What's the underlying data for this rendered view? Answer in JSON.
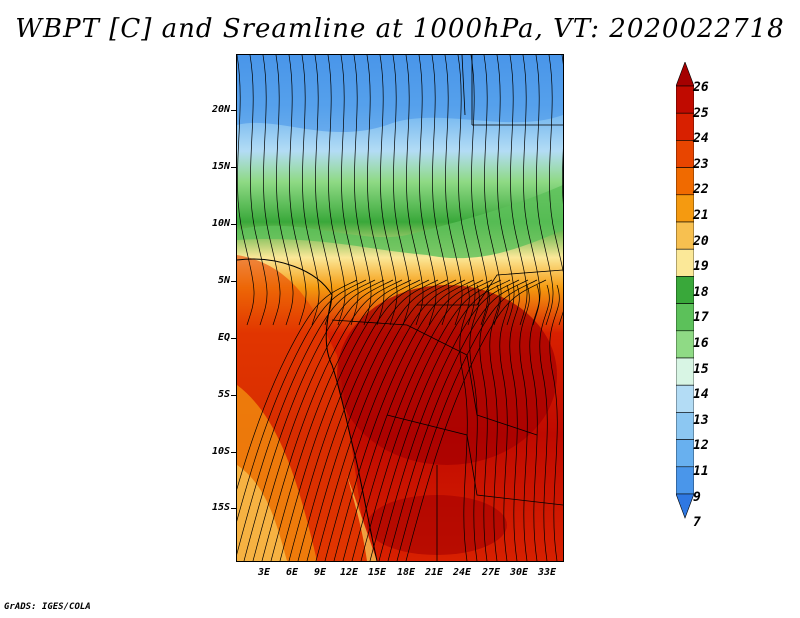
{
  "title": "WBPT [C] and Sreamline at 1000hPa, VT: 2020022718",
  "footer": "GrADS: IGES/COLA",
  "lat_labels": [
    "20N",
    "15N",
    "10N",
    "5N",
    "EQ",
    "5S",
    "10S",
    "15S"
  ],
  "lon_labels": [
    "3E",
    "6E",
    "9E",
    "12E",
    "15E",
    "18E",
    "21E",
    "24E",
    "27E",
    "30E",
    "33E"
  ],
  "colorbar": {
    "labels": [
      "26",
      "25",
      "24",
      "23",
      "22",
      "21",
      "20",
      "19",
      "18",
      "17",
      "16",
      "15",
      "14",
      "13",
      "12",
      "11",
      "9",
      "7"
    ],
    "colors": [
      "#a50000",
      "#c00a00",
      "#d82000",
      "#e84500",
      "#f06a00",
      "#f59a10",
      "#f7c050",
      "#fbe898",
      "#39a83a",
      "#5cc15a",
      "#8fda85",
      "#d8f5e4",
      "#b3dcf5",
      "#8cc7f2",
      "#68b0ef",
      "#4a96ea",
      "#2f78e2"
    ]
  },
  "colors": {
    "background": "#ffffff",
    "streamline": "#000000"
  }
}
